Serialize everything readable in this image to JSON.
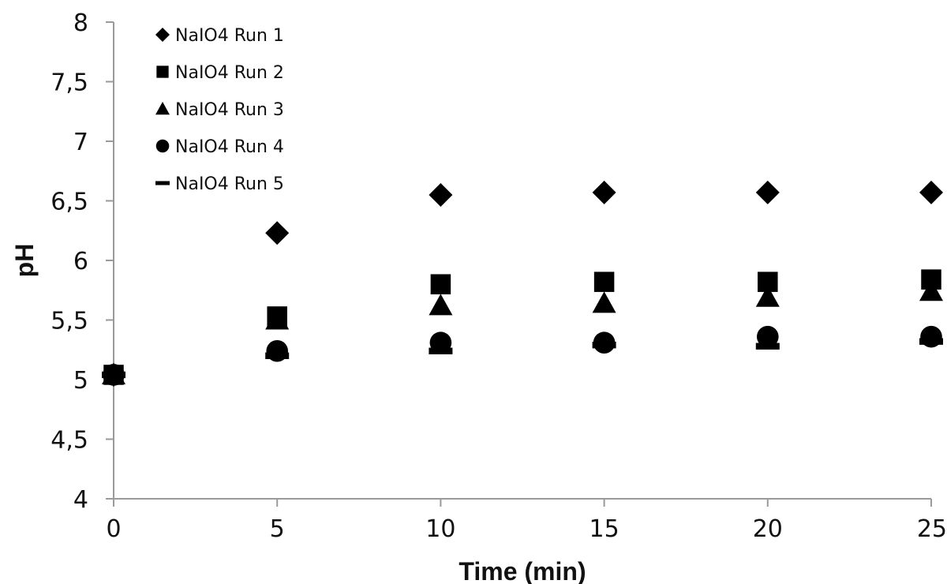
{
  "chart_data": {
    "type": "scatter",
    "title": "",
    "xlabel": "Time (min)",
    "ylabel": "pH",
    "xlim": [
      0,
      25
    ],
    "ylim": [
      4,
      8
    ],
    "x_ticks": [
      "0",
      "5",
      "10",
      "15",
      "20",
      "25"
    ],
    "y_ticks": [
      "4",
      "4,5",
      "5",
      "5,5",
      "6",
      "6,5",
      "7",
      "7,5",
      "8"
    ],
    "grid": false,
    "legend_position": "top-left",
    "x": [
      0,
      5,
      10,
      15,
      20,
      25
    ],
    "series": [
      {
        "name": "NaIO4 Run 1",
        "marker": "diamond",
        "values": [
          5.04,
          6.23,
          6.55,
          6.57,
          6.57,
          6.57
        ]
      },
      {
        "name": "NaIO4 Run 2",
        "marker": "square",
        "values": [
          5.04,
          5.53,
          5.8,
          5.82,
          5.82,
          5.84
        ]
      },
      {
        "name": "NaIO4 Run 3",
        "marker": "triangle",
        "values": [
          5.04,
          5.5,
          5.62,
          5.64,
          5.69,
          5.74
        ]
      },
      {
        "name": "NaIO4 Run 4",
        "marker": "circle",
        "values": [
          5.04,
          5.24,
          5.31,
          5.31,
          5.36,
          5.36
        ]
      },
      {
        "name": "NaIO4 Run 5",
        "marker": "dash",
        "values": [
          5.04,
          5.2,
          5.24,
          5.29,
          5.28,
          5.32
        ]
      }
    ],
    "marker_color": "#000000"
  }
}
